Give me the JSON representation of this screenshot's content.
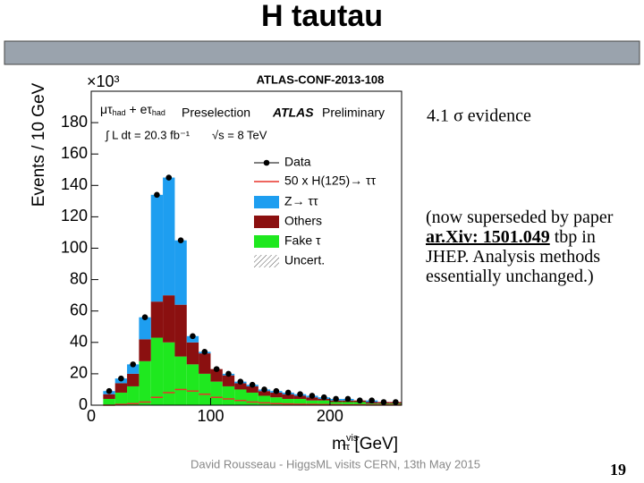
{
  "slide": {
    "title": "H tautau",
    "reference": "ATLAS-CONF-2013-108",
    "evidence": "4.1 σ evidence",
    "note_start": "(now superseded by paper ",
    "note_link": "ar.Xiv: 1501.049",
    "note_end": " tbp in JHEP. Analysis methods essentially unchanged.)",
    "footer": "David Rousseau - HiggsML visits CERN, 13th May 2015",
    "page": "19"
  },
  "chart_data": {
    "type": "histogram",
    "y_multiplier": "×10³",
    "ylabel": "Events / 10 GeV",
    "xlabel_main": "m",
    "xlabel_sup": "vis",
    "xlabel_sub": "ττ",
    "xlabel_unit": " [GeV]",
    "channel": [
      "μτ",
      "had",
      " + eτ",
      "had"
    ],
    "selection": "Preselection",
    "experiment": "ATLAS",
    "status": "Preliminary",
    "luminosity": "∫ L dt = 20.3 fb⁻¹",
    "energy": "√s = 8 TeV",
    "uncertainty_label": "Uncert.",
    "bins": [
      10,
      20,
      30,
      40,
      50,
      60,
      70,
      80,
      90,
      100,
      110,
      120,
      130,
      140,
      150,
      160,
      170,
      180,
      190,
      200,
      210,
      220,
      230,
      240,
      250,
      260
    ],
    "series": [
      {
        "name": "Data",
        "color": "#000000",
        "style": "marker",
        "values": [
          9,
          17,
          26,
          56,
          134,
          145,
          105,
          44,
          34,
          23,
          20,
          15,
          13,
          10,
          9,
          8,
          7,
          6,
          5,
          4,
          4,
          3,
          3,
          2,
          2
        ]
      },
      {
        "name": "50 x H(125)→ ττ",
        "color": "#e8342a",
        "style": "step",
        "values": [
          0,
          0.5,
          1,
          2,
          5,
          8,
          10,
          9,
          7,
          5,
          4,
          3,
          2,
          1.5,
          1,
          0.8,
          0.6,
          0.5,
          0.4,
          0.3,
          0.2,
          0.2,
          0.1,
          0.1,
          0.1
        ]
      },
      {
        "name": "Z→ ττ",
        "color": "#1e9ef0",
        "style": "fill",
        "values": [
          2,
          3,
          6,
          14,
          68,
          75,
          41,
          4,
          1,
          0,
          1,
          1,
          1,
          1,
          1,
          1,
          1,
          1,
          1,
          1,
          1,
          0,
          1,
          0,
          0
        ]
      },
      {
        "name": "Others",
        "color": "#8b1010",
        "style": "fill",
        "values": [
          3,
          6,
          8,
          14,
          23,
          30,
          33,
          14,
          13,
          8,
          7,
          4,
          4,
          3,
          3,
          3,
          2,
          2,
          1,
          1,
          1,
          1,
          1,
          1,
          1
        ]
      },
      {
        "name": "Fake τ",
        "color": "#1fe81f",
        "style": "fill",
        "values": [
          4,
          8,
          12,
          28,
          43,
          40,
          31,
          26,
          20,
          15,
          12,
          10,
          8,
          6,
          5,
          4,
          4,
          3,
          3,
          2,
          2,
          2,
          1,
          1,
          1
        ]
      }
    ],
    "xlim": [
      0,
      260
    ],
    "ylim": [
      0,
      200
    ],
    "xticks": [
      0,
      100,
      200
    ],
    "yticks": [
      0,
      20,
      40,
      60,
      80,
      100,
      120,
      140,
      160,
      180
    ]
  }
}
